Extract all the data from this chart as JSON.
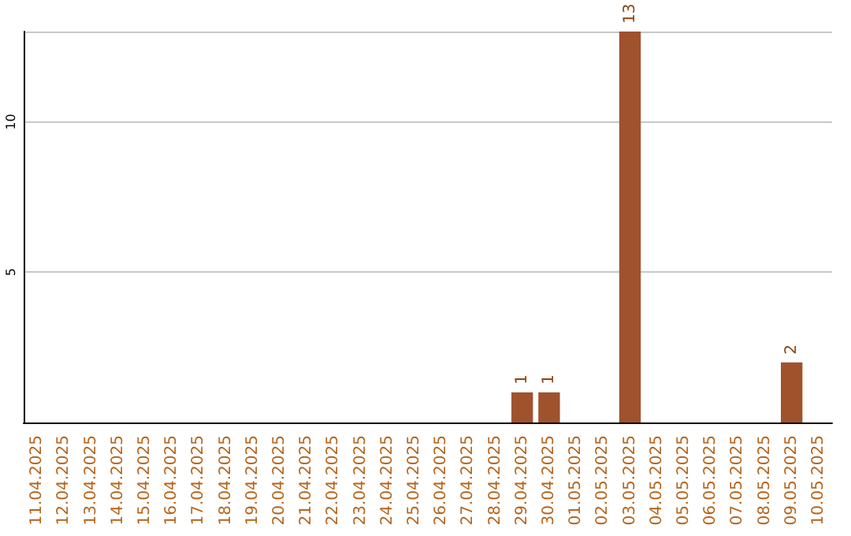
{
  "chart_data": {
    "type": "bar",
    "categories": [
      "11.04.2025",
      "12.04.2025",
      "13.04.2025",
      "14.04.2025",
      "15.04.2025",
      "16.04.2025",
      "17.04.2025",
      "18.04.2025",
      "19.04.2025",
      "20.04.2025",
      "21.04.2025",
      "22.04.2025",
      "23.04.2025",
      "24.04.2025",
      "25.04.2025",
      "26.04.2025",
      "27.04.2025",
      "28.04.2025",
      "29.04.2025",
      "30.04.2025",
      "01.05.2025",
      "02.05.2025",
      "03.05.2025",
      "04.05.2025",
      "05.05.2025",
      "06.05.2025",
      "07.05.2025",
      "08.05.2025",
      "09.05.2025",
      "10.05.2025"
    ],
    "values": [
      0,
      0,
      0,
      0,
      0,
      0,
      0,
      0,
      0,
      0,
      0,
      0,
      0,
      0,
      0,
      0,
      0,
      0,
      1,
      1,
      0,
      0,
      13,
      0,
      0,
      0,
      0,
      0,
      2,
      0
    ],
    "value_labels": [
      null,
      null,
      null,
      null,
      null,
      null,
      null,
      null,
      null,
      null,
      null,
      null,
      null,
      null,
      null,
      null,
      null,
      null,
      "1",
      "1",
      null,
      null,
      "13",
      null,
      null,
      null,
      null,
      null,
      "2",
      null
    ],
    "color": "#a0522d",
    "ylim": [
      0,
      13
    ],
    "yticks": [
      {
        "value": 0,
        "label": null
      },
      5,
      10
    ],
    "grid": "y"
  }
}
